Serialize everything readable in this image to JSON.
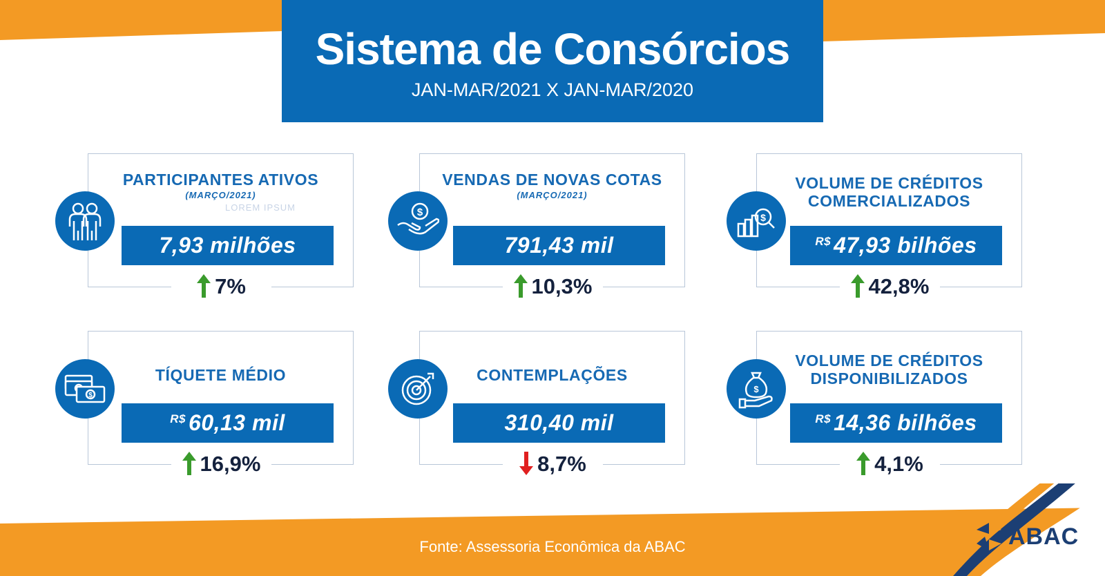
{
  "header": {
    "title": "Sistema de Consórcios",
    "subtitle": "JAN-MAR/2021 X JAN-MAR/2020"
  },
  "colors": {
    "brand_blue": "#0A6AB5",
    "accent_orange": "#F39A24",
    "up_green": "#3a9b2c",
    "down_red": "#e02020",
    "title_blue": "#1669b3"
  },
  "cards": [
    {
      "title_line1": "PARTICIPANTES ATIVOS",
      "title_line2": "",
      "period": "(MARÇO/2021)",
      "currency": "",
      "value": "7,93 milhões",
      "change": "7%",
      "direction": "up",
      "icon": "people-icon"
    },
    {
      "title_line1": "VENDAS DE NOVAS COTAS",
      "title_line2": "",
      "period": "(MARÇO/2021)",
      "currency": "",
      "value": "791,43 mil",
      "change": "10,3%",
      "direction": "up",
      "icon": "hand-coin-icon"
    },
    {
      "title_line1": "VOLUME DE CRÉDITOS",
      "title_line2": "COMERCIALIZADOS",
      "period": "",
      "currency": "R$",
      "value": "47,93 bilhões",
      "change": "42,8%",
      "direction": "up",
      "icon": "chart-magnifier-icon"
    },
    {
      "title_line1": "TÍQUETE MÉDIO",
      "title_line2": "",
      "period": "",
      "currency": "R$",
      "value": "60,13 mil",
      "change": "16,9%",
      "direction": "up",
      "icon": "banknotes-icon"
    },
    {
      "title_line1": "CONTEMPLAÇÕES",
      "title_line2": "",
      "period": "",
      "currency": "",
      "value": "310,40 mil",
      "change": "8,7%",
      "direction": "down",
      "icon": "target-icon"
    },
    {
      "title_line1": "VOLUME DE CRÉDITOS",
      "title_line2": "DISPONIBILIZADOS",
      "period": "",
      "currency": "R$",
      "value": "14,36 bilhões",
      "change": "4,1%",
      "direction": "up",
      "icon": "money-bag-hand-icon"
    }
  ],
  "ghost_text": "LOREM IPSUM",
  "footer": {
    "source": "Fonte: Assessoria Econômica da ABAC"
  },
  "logo": {
    "text": "ABAC"
  }
}
